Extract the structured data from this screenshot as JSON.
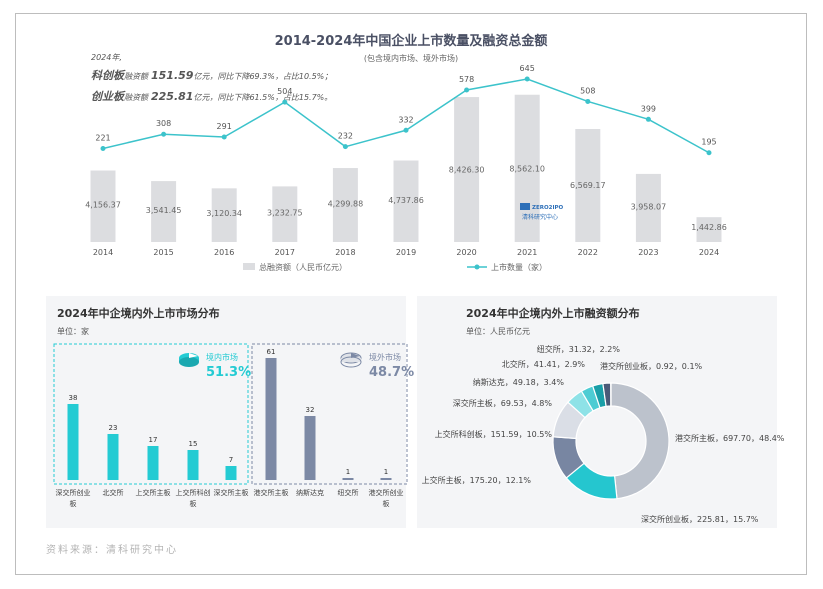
{
  "top_note": {
    "year": "2024年,",
    "star_name": "科创板",
    "star_label": "融资额",
    "star_value": "151.59",
    "star_unit": "亿元",
    "star_change": "，同比下降69.3%，占比10.5%；",
    "chinext_name": "创业板",
    "chinext_label": "融资额",
    "chinext_value": "225.81",
    "chinext_unit": "亿元",
    "chinext_change": "，同比下降61.5%，占比15.7%。"
  },
  "logo": {
    "line1": "ZERO2IPO",
    "line2": "清科研究中心"
  },
  "source": "资料来源：清科研究中心",
  "panel_left": {
    "title": "2024年中企境内外上市市场分布",
    "unit": "单位：家",
    "domestic_label": "境内市场",
    "domestic_pct": "51.3%",
    "overseas_label": "境外市场",
    "overseas_pct": "48.7%"
  },
  "panel_right": {
    "title": "2024年中企境内外上市融资额分布",
    "unit": "单位：人民币亿元"
  },
  "chart_data": [
    {
      "type": "bar+line",
      "title": "2014-2024年中国企业上市数量及融资总金额",
      "subtitle": "(包含境内市场、境外市场)",
      "categories": [
        "2014",
        "2015",
        "2016",
        "2017",
        "2018",
        "2019",
        "2020",
        "2021",
        "2022",
        "2023",
        "2024"
      ],
      "series": [
        {
          "name": "总融资额（人民币亿元）",
          "kind": "bar",
          "values": [
            4156.37,
            3541.45,
            3120.34,
            3232.75,
            4299.88,
            4737.86,
            8426.3,
            8562.1,
            6569.17,
            3958.07,
            1442.86
          ],
          "labels": [
            "4,156.37",
            "3,541.45",
            "3,120.34",
            "3,232.75",
            "4,299.88",
            "4,737.86",
            "8,426.30",
            "8,562.10",
            "6,569.17",
            "3,958.07",
            "1,442.86"
          ]
        },
        {
          "name": "上市数量（家）",
          "kind": "line",
          "values": [
            221,
            308,
            291,
            504,
            232,
            332,
            578,
            645,
            508,
            399,
            195
          ]
        }
      ],
      "bar_ylim": [
        0,
        10000
      ],
      "line_ylim": [
        -350,
        700
      ],
      "colors": {
        "bar": "#dcdde0",
        "line": "#3cc3cb"
      }
    },
    {
      "type": "bar",
      "title": "2024年中企境内外上市市场分布",
      "ylabel": "单位：家",
      "categories": [
        "深交所创业板",
        "北交所",
        "上交所主板",
        "上交所科创板",
        "深交所主板",
        "港交所主板",
        "纳斯达克",
        "纽交所",
        "港交所创业板"
      ],
      "values": [
        38,
        23,
        17,
        15,
        7,
        61,
        32,
        1,
        1
      ],
      "groups": [
        "境内市场",
        "境内市场",
        "境内市场",
        "境内市场",
        "境内市场",
        "境外市场",
        "境外市场",
        "境外市场",
        "境外市场"
      ],
      "ylim": [
        0,
        70
      ],
      "colors": {
        "domestic": "#24cbd3",
        "overseas": "#7c89a5"
      }
    },
    {
      "type": "pie",
      "title": "2024年中企境内外上市融资额分布",
      "unit": "单位：人民币亿元",
      "slices": [
        {
          "label": "港交所主板",
          "value": 697.7,
          "pct": "48.4%",
          "text": "港交所主板，697.70，48.4%",
          "color": "#bcc2cc"
        },
        {
          "label": "深交所创业板",
          "value": 225.81,
          "pct": "15.7%",
          "text": "深交所创业板，225.81，15.7%",
          "color": "#25c6cf"
        },
        {
          "label": "上交所主板",
          "value": 175.2,
          "pct": "12.1%",
          "text": "上交所主板，175.20，12.1%",
          "color": "#7886a2"
        },
        {
          "label": "上交所科创板",
          "value": 151.59,
          "pct": "10.5%",
          "text": "上交所科创板，151.59，10.5%",
          "color": "#dadee6"
        },
        {
          "label": "深交所主板",
          "value": 69.53,
          "pct": "4.8%",
          "text": "深交所主板，69.53，4.8%",
          "color": "#8ee2e7"
        },
        {
          "label": "纳斯达克",
          "value": 49.18,
          "pct": "3.4%",
          "text": "纳斯达克，49.18，3.4%",
          "color": "#4dccd3"
        },
        {
          "label": "北交所",
          "value": 41.41,
          "pct": "2.9%",
          "text": "北交所，41.41，2.9%",
          "color": "#1a9fa8"
        },
        {
          "label": "纽交所",
          "value": 31.32,
          "pct": "2.2%",
          "text": "纽交所，31.32，2.2%",
          "color": "#4a5a78"
        },
        {
          "label": "港交所创业板",
          "value": 0.92,
          "pct": "0.1%",
          "text": "港交所创业板，0.92，0.1%",
          "color": "#22494f"
        }
      ]
    }
  ]
}
